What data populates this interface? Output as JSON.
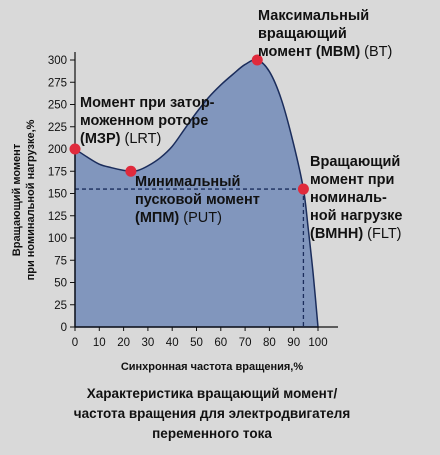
{
  "chart_data": {
    "type": "area",
    "title": "",
    "xlabel": "Синхронная частота вращения,%",
    "ylabel_lines": [
      "Вращающий момент",
      "при номинальной нагрузке,%"
    ],
    "xlim": [
      0,
      100
    ],
    "ylim": [
      0,
      300
    ],
    "xticks": [
      0,
      10,
      20,
      30,
      40,
      50,
      60,
      70,
      80,
      90,
      100
    ],
    "yticks": [
      0,
      25,
      50,
      75,
      100,
      125,
      150,
      175,
      200,
      225,
      250,
      275,
      300
    ],
    "grid": false,
    "fill_color": "#8196bd",
    "line_color": "#1b2d5c",
    "marker_color": "#e02a3c",
    "curve": {
      "x": [
        0,
        5,
        10,
        15,
        20,
        23,
        26,
        30,
        35,
        40,
        45,
        50,
        55,
        60,
        65,
        70,
        75,
        80,
        85,
        90,
        94,
        96,
        98,
        100
      ],
      "y": [
        200,
        191,
        183,
        179,
        176,
        175,
        176,
        181,
        190,
        203,
        222,
        241,
        258,
        272,
        284,
        295,
        300,
        287,
        255,
        205,
        155,
        110,
        60,
        0
      ]
    },
    "reference_lines": {
      "y": 155,
      "x_end": 94
    },
    "points": [
      {
        "key": "lrt",
        "x": 0,
        "y": 200,
        "label_bold": [
          "Момент при затор-",
          "моженном роторе",
          "(МЗР)"
        ],
        "label_code": "(LRT)"
      },
      {
        "key": "put",
        "x": 23,
        "y": 175,
        "label_bold": [
          "Минимальный",
          "пусковой момент",
          "(МПМ)"
        ],
        "label_code": "(PUT)"
      },
      {
        "key": "bt",
        "x": 75,
        "y": 300,
        "label_bold": [
          "Максимальный",
          "вращающий",
          "момент (МВМ)"
        ],
        "label_code": "(BT)"
      },
      {
        "key": "flt",
        "x": 94,
        "y": 155,
        "label_bold": [
          "Вращающий",
          "момент при",
          "номиналь-",
          "ной нагрузке",
          "(ВМНН)"
        ],
        "label_code": "(FLT)"
      }
    ]
  },
  "caption_lines": [
    "Характеристика вращающий момент/",
    "частота вращения для электродвигателя",
    "переменного тока"
  ]
}
